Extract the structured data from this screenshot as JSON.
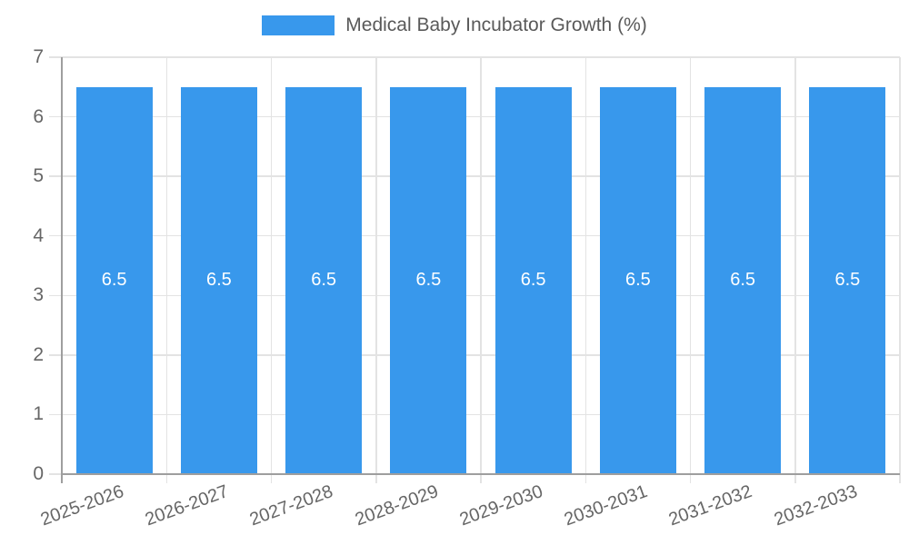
{
  "chart_data": {
    "type": "bar",
    "legend_label": "Medical Baby Incubator Growth (%)",
    "legend_position": "top",
    "categories": [
      "2025-2026",
      "2026-2027",
      "2027-2028",
      "2028-2029",
      "2029-2030",
      "2030-2031",
      "2031-2032",
      "2032-2033"
    ],
    "values": [
      6.5,
      6.5,
      6.5,
      6.5,
      6.5,
      6.5,
      6.5,
      6.5
    ],
    "value_labels": [
      "6.5",
      "6.5",
      "6.5",
      "6.5",
      "6.5",
      "6.5",
      "6.5",
      "6.5"
    ],
    "ylim": [
      0,
      7
    ],
    "yticks": [
      0,
      1,
      2,
      3,
      4,
      5,
      6,
      7
    ],
    "grid": "on",
    "xlabel": "",
    "ylabel": "",
    "colors": {
      "bar": "#3898ec",
      "value_label": "#ffffff",
      "axis_line": "#9e9e9e",
      "grid_line": "#e3e3e3",
      "tick_text": "#666666",
      "legend_text": "#595959",
      "background": "#ffffff"
    }
  }
}
